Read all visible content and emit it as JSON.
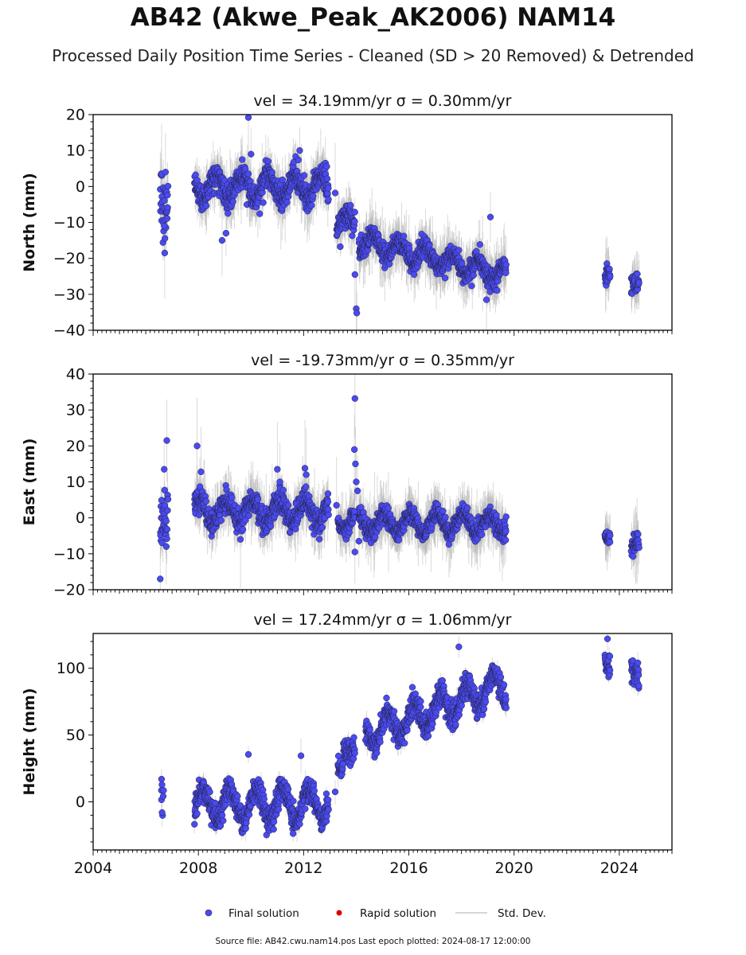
{
  "title": "AB42 (Akwe_Peak_AK2006) NAM14",
  "subtitle": "Processed Daily Position Time Series - Cleaned (SD > 20 Removed) & Detrended",
  "source_note": "Source file: AB42.cwu.nam14.pos  Last epoch plotted: 2024-08-17 12:00:00",
  "colors": {
    "final": "#4a4af0",
    "rapid": "#dd0000",
    "std": "#b4b4b4",
    "edge": "#222244"
  },
  "legend": {
    "final_label": "Final solution",
    "rapid_label": "Rapid solution",
    "std_label": "Std. Dev."
  },
  "chart_data": [
    {
      "type": "scatter",
      "component": "north",
      "title": "vel = 34.19mm/yr   σ = 0.30mm/yr",
      "ylabel": "North (mm)",
      "xlim": [
        2004,
        2026
      ],
      "ylim": [
        -40,
        20
      ],
      "xticks": [
        2004,
        2008,
        2012,
        2016,
        2020,
        2024
      ],
      "yticks": [
        -40,
        -30,
        -20,
        -10,
        0,
        10,
        20
      ],
      "show_xtick_labels": false,
      "series": [
        {
          "role": "final",
          "segments": [
            {
              "start": 2006.55,
              "end": 2006.85,
              "mean": -3,
              "amp": 2,
              "trend": 0,
              "noise": 5,
              "density": 110,
              "phase": 0
            },
            {
              "start": 2007.85,
              "end": 2012.95,
              "mean": 0,
              "amp": 3.2,
              "trend": 0,
              "noise": 1.8,
              "density": 130,
              "phase": 0.6
            },
            {
              "start": 2013.25,
              "end": 2013.95,
              "mean": -10,
              "amp": 2,
              "trend": 0,
              "noise": 1.5,
              "density": 130,
              "phase": 0.6
            },
            {
              "start": 2014.1,
              "end": 2019.7,
              "mean": -15,
              "amp": 2.4,
              "trend": -1.75,
              "noise": 1.4,
              "density": 130,
              "phase": 0.6
            },
            {
              "start": 2023.45,
              "end": 2023.65,
              "mean": -26,
              "amp": 1.5,
              "trend": 0,
              "noise": 1.5,
              "density": 130,
              "phase": 0.6
            },
            {
              "start": 2024.45,
              "end": 2024.75,
              "mean": -28,
              "amp": 1.2,
              "trend": 0,
              "noise": 1.3,
              "density": 130,
              "phase": 0.6
            }
          ],
          "outliers": [
            [
              2006.6,
              3.5
            ],
            [
              2006.75,
              4
            ],
            [
              2006.7,
              -11
            ],
            [
              2006.72,
              -18.5
            ],
            [
              2009.9,
              19.2
            ],
            [
              2010.0,
              9
            ],
            [
              2011.85,
              10
            ],
            [
              2008.9,
              -15
            ],
            [
              2009.05,
              -13
            ],
            [
              2014.0,
              -34
            ],
            [
              2014.02,
              -35.2
            ],
            [
              2013.95,
              -24.5
            ],
            [
              2019.1,
              -8.5
            ],
            [
              2018.95,
              -31.5
            ],
            [
              2013.2,
              -1.8
            ],
            [
              2016.2,
              -24.5
            ]
          ]
        }
      ]
    },
    {
      "type": "scatter",
      "component": "east",
      "title": "vel = -19.73mm/yr   σ = 0.35mm/yr",
      "ylabel": "East (mm)",
      "xlim": [
        2004,
        2026
      ],
      "ylim": [
        -20,
        40
      ],
      "xticks": [
        2004,
        2008,
        2012,
        2016,
        2020,
        2024
      ],
      "yticks": [
        -20,
        -10,
        0,
        10,
        20,
        30,
        40
      ],
      "show_xtick_labels": false,
      "series": [
        {
          "role": "final",
          "segments": [
            {
              "start": 2006.55,
              "end": 2006.85,
              "mean": 0,
              "amp": 2,
              "trend": 0,
              "noise": 4,
              "density": 110,
              "phase": 0.2
            },
            {
              "start": 2007.85,
              "end": 2012.95,
              "mean": 2,
              "amp": 3,
              "trend": 0,
              "noise": 1.6,
              "density": 130,
              "phase": 0.2
            },
            {
              "start": 2013.3,
              "end": 2013.95,
              "mean": -1,
              "amp": 1.8,
              "trend": 0,
              "noise": 1.4,
              "density": 130,
              "phase": 0.2
            },
            {
              "start": 2014.1,
              "end": 2019.7,
              "mean": -1.5,
              "amp": 2.6,
              "trend": 0,
              "noise": 1.3,
              "density": 130,
              "phase": 0.2
            },
            {
              "start": 2023.45,
              "end": 2023.65,
              "mean": -4.5,
              "amp": 1,
              "trend": 0,
              "noise": 1,
              "density": 130,
              "phase": 0.2
            },
            {
              "start": 2024.45,
              "end": 2024.75,
              "mean": -6,
              "amp": 1.5,
              "trend": 0,
              "noise": 1.4,
              "density": 130,
              "phase": 0.2
            }
          ],
          "outliers": [
            [
              2006.55,
              -17
            ],
            [
              2006.8,
              21.5
            ],
            [
              2006.7,
              13.5
            ],
            [
              2006.78,
              -8
            ],
            [
              2007.95,
              20
            ],
            [
              2008.1,
              12.8
            ],
            [
              2011.0,
              13.5
            ],
            [
              2011.1,
              10
            ],
            [
              2012.05,
              13.8
            ],
            [
              2012.1,
              12
            ],
            [
              2013.95,
              33.2
            ],
            [
              2013.93,
              19
            ],
            [
              2013.97,
              15
            ],
            [
              2014.0,
              10
            ],
            [
              2014.05,
              7.5
            ],
            [
              2013.95,
              -9.5
            ],
            [
              2014.1,
              -6.5
            ],
            [
              2009.6,
              -6
            ],
            [
              2013.25,
              3.5
            ]
          ]
        }
      ]
    },
    {
      "type": "scatter",
      "component": "height",
      "title": "vel = 17.24mm/yr   σ = 1.06mm/yr",
      "ylabel": "Height (mm)",
      "xlim": [
        2004,
        2026
      ],
      "ylim": [
        -36,
        126
      ],
      "xticks": [
        2004,
        2008,
        2012,
        2016,
        2020,
        2024
      ],
      "yticks": [
        0,
        50,
        100
      ],
      "xtick_labels": [
        "2004",
        "2008",
        "2012",
        "2016",
        "2020",
        "2024"
      ],
      "show_xtick_labels": true,
      "series": [
        {
          "role": "final",
          "segments": [
            {
              "start": 2006.58,
              "end": 2006.68,
              "mean": 3,
              "amp": 0,
              "trend": 0,
              "noise": 8,
              "density": 60,
              "phase": 0
            },
            {
              "start": 2007.85,
              "end": 2012.95,
              "mean": -2,
              "amp": 12,
              "trend": 0,
              "noise": 4.5,
              "density": 130,
              "phase": 0.05
            },
            {
              "start": 2013.5,
              "end": 2013.95,
              "mean": 40,
              "amp": 4,
              "trend": 0,
              "noise": 5,
              "density": 130,
              "phase": 0.05
            },
            {
              "start": 2013.3,
              "end": 2013.5,
              "mean": 25,
              "amp": 0,
              "trend": 0,
              "noise": 4,
              "density": 130,
              "phase": 0.05
            },
            {
              "start": 2014.35,
              "end": 2019.7,
              "mean": 50,
              "amp": 11,
              "trend": 7.2,
              "noise": 4.5,
              "density": 130,
              "phase": 0.05
            },
            {
              "start": 2023.45,
              "end": 2023.65,
              "mean": 106,
              "amp": 5,
              "trend": 0,
              "noise": 5,
              "density": 130,
              "phase": 0.05
            },
            {
              "start": 2024.45,
              "end": 2024.75,
              "mean": 100,
              "amp": 6,
              "trend": 0,
              "noise": 5,
              "density": 130,
              "phase": 0.05
            }
          ],
          "outliers": [
            [
              2006.6,
              17
            ],
            [
              2006.62,
              -8
            ],
            [
              2009.9,
              35.5
            ],
            [
              2011.9,
              34.5
            ],
            [
              2013.2,
              7.5
            ],
            [
              2017.9,
              116
            ],
            [
              2023.55,
              122
            ]
          ]
        }
      ]
    }
  ]
}
